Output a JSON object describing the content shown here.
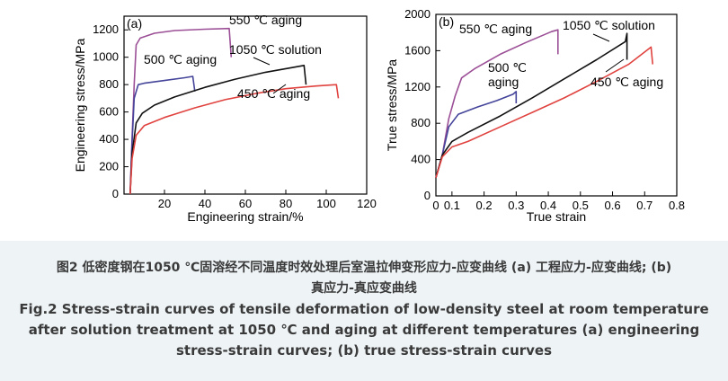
{
  "caption": {
    "cn_line1": "图2 低密度钢在1050 ℃固溶经不同温度时效处理后室温拉伸变形应力-应变曲线 (a) 工程应力-应变曲线; (b)",
    "cn_line2": "真应力-真应变曲线",
    "en_line1": "Fig.2 Stress-strain curves of tensile deformation of low-density steel at room temperature",
    "en_line2": "after solution treatment at 1050 ℃ and aging at different temperatures   (a) engineering",
    "en_line3": "stress-strain curves;  (b) true stress-strain curves"
  },
  "chart_data": [
    {
      "panel_label": "(a)",
      "type": "line",
      "xlabel": "Engineering strain/%",
      "ylabel": "Engineering stress/MPa",
      "xlim": [
        0,
        120
      ],
      "ylim": [
        0,
        1300
      ],
      "xticks": [
        0,
        20,
        40,
        60,
        80,
        100,
        120
      ],
      "xtick_labels": [
        "",
        "20",
        "40",
        "60",
        "80",
        "100",
        "120"
      ],
      "yticks": [
        0,
        200,
        400,
        600,
        800,
        1000,
        1200
      ],
      "series": [
        {
          "name": "550 ℃ aging",
          "color": "#9b4f96",
          "points": [
            [
              3,
              0
            ],
            [
              4,
              420
            ],
            [
              5,
              800
            ],
            [
              6,
              1090
            ],
            [
              8,
              1140
            ],
            [
              15,
              1175
            ],
            [
              25,
              1195
            ],
            [
              40,
              1205
            ],
            [
              52,
              1210
            ],
            [
              53,
              1000
            ]
          ]
        },
        {
          "name": "500 ℃ aging",
          "color": "#44449a",
          "points": [
            [
              3,
              0
            ],
            [
              4,
              380
            ],
            [
              5,
              700
            ],
            [
              7,
              800
            ],
            [
              10,
              810
            ],
            [
              20,
              830
            ],
            [
              30,
              850
            ],
            [
              34,
              860
            ],
            [
              35,
              750
            ]
          ]
        },
        {
          "name": "1050 ℃ solution",
          "color": "#111111",
          "points": [
            [
              3,
              0
            ],
            [
              4,
              300
            ],
            [
              6,
              520
            ],
            [
              9,
              590
            ],
            [
              15,
              650
            ],
            [
              25,
              710
            ],
            [
              40,
              780
            ],
            [
              55,
              840
            ],
            [
              70,
              890
            ],
            [
              85,
              930
            ],
            [
              89,
              940
            ],
            [
              90,
              800
            ]
          ]
        },
        {
          "name": "450 ℃ aging",
          "color": "#e0433f",
          "points": [
            [
              3,
              0
            ],
            [
              4,
              260
            ],
            [
              6,
              430
            ],
            [
              10,
              500
            ],
            [
              20,
              560
            ],
            [
              35,
              630
            ],
            [
              50,
              690
            ],
            [
              65,
              735
            ],
            [
              80,
              770
            ],
            [
              95,
              790
            ],
            [
              105,
              800
            ],
            [
              106,
              700
            ]
          ]
        }
      ],
      "annotations": [
        {
          "text": "550 ℃ aging",
          "series": "550 ℃ aging"
        },
        {
          "text": "500 ℃ aging",
          "series": "500 ℃ aging"
        },
        {
          "text": "1050 ℃ solution",
          "series": "1050 ℃ solution"
        },
        {
          "text": "450 ℃ aging",
          "series": "450 ℃ aging"
        }
      ]
    },
    {
      "panel_label": "(b)",
      "type": "line",
      "xlabel": "True strain",
      "ylabel": "True stress/MPa",
      "xlim": [
        0.05,
        0.8
      ],
      "ylim": [
        0,
        2000
      ],
      "xticks": [
        0.05,
        0.1,
        0.2,
        0.3,
        0.4,
        0.5,
        0.6,
        0.7,
        0.8
      ],
      "xtick_labels": [
        "0",
        "0.1",
        "0.2",
        "0.3",
        "0.4",
        "0.5",
        "0.6",
        "0.7",
        "0.8"
      ],
      "yticks": [
        0,
        400,
        800,
        1200,
        1600,
        2000
      ],
      "series": [
        {
          "name": "550 ℃ aging",
          "color": "#9b4f96",
          "points": [
            [
              0.05,
              200
            ],
            [
              0.07,
              450
            ],
            [
              0.09,
              850
            ],
            [
              0.11,
              1100
            ],
            [
              0.13,
              1300
            ],
            [
              0.17,
              1400
            ],
            [
              0.25,
              1560
            ],
            [
              0.33,
              1690
            ],
            [
              0.41,
              1810
            ],
            [
              0.43,
              1830
            ],
            [
              0.43,
              1560
            ]
          ]
        },
        {
          "name": "500 ℃ aging",
          "color": "#44449a",
          "points": [
            [
              0.05,
              200
            ],
            [
              0.07,
              450
            ],
            [
              0.09,
              760
            ],
            [
              0.12,
              900
            ],
            [
              0.18,
              980
            ],
            [
              0.24,
              1050
            ],
            [
              0.29,
              1120
            ],
            [
              0.3,
              1150
            ],
            [
              0.3,
              1020
            ]
          ]
        },
        {
          "name": "1050 ℃ solution",
          "color": "#111111",
          "points": [
            [
              0.05,
              200
            ],
            [
              0.07,
              450
            ],
            [
              0.1,
              600
            ],
            [
              0.15,
              700
            ],
            [
              0.25,
              880
            ],
            [
              0.35,
              1080
            ],
            [
              0.45,
              1290
            ],
            [
              0.55,
              1500
            ],
            [
              0.64,
              1700
            ],
            [
              0.645,
              1790
            ],
            [
              0.645,
              1500
            ]
          ]
        },
        {
          "name": "450 ℃ aging",
          "color": "#e0433f",
          "points": [
            [
              0.05,
              200
            ],
            [
              0.07,
              430
            ],
            [
              0.1,
              540
            ],
            [
              0.15,
              600
            ],
            [
              0.25,
              760
            ],
            [
              0.35,
              920
            ],
            [
              0.45,
              1080
            ],
            [
              0.55,
              1260
            ],
            [
              0.65,
              1450
            ],
            [
              0.72,
              1640
            ],
            [
              0.725,
              1450
            ]
          ]
        }
      ],
      "annotations": [
        {
          "text": "550 ℃ aging",
          "series": "550 ℃ aging"
        },
        {
          "text": "500 ℃",
          "series": "500 ℃ aging"
        },
        {
          "text": "aging",
          "series": "500 ℃ aging"
        },
        {
          "text": "1050 ℃ solution",
          "series": "1050 ℃ solution"
        },
        {
          "text": "450 ℃ aging",
          "series": "450 ℃ aging"
        }
      ]
    }
  ]
}
